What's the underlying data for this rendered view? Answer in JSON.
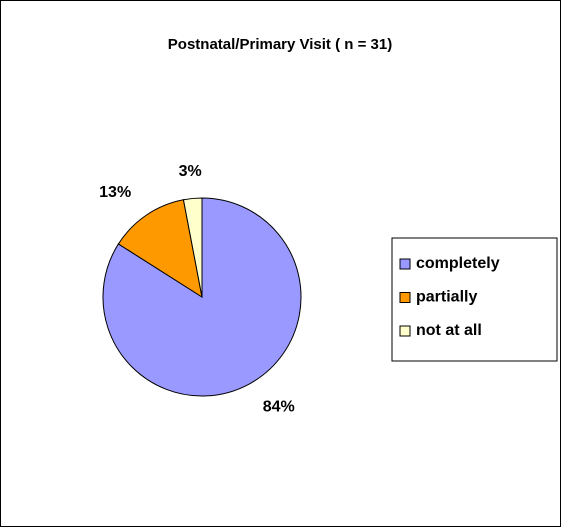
{
  "chart_data": {
    "type": "pie",
    "title": "Postnatal/Primary Visit ( n = 31)",
    "categories": [
      "completely",
      "partially",
      "not at all"
    ],
    "values": [
      84,
      13,
      3
    ],
    "value_labels": [
      "84%",
      "13%",
      "3%"
    ],
    "colors": [
      "#9999ff",
      "#ff9900",
      "#ffffcc"
    ],
    "legend": "right"
  }
}
